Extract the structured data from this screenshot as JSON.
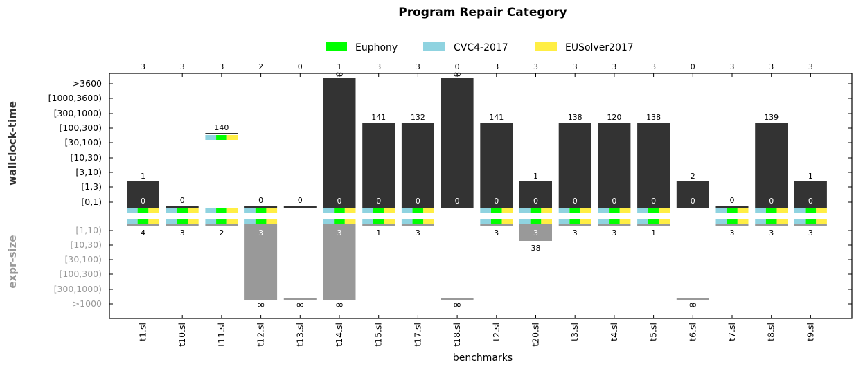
{
  "chart_data": {
    "type": "bar",
    "title": "Program Repair  Category",
    "xlabel": "benchmarks",
    "ylabel_top": "wallclock-time",
    "ylabel_bottom": "expr-size",
    "time_ticks": [
      "[0,1)",
      "[1,3)",
      "[3,10)",
      "[10,30)",
      "[30,100)",
      "[100,300)",
      "[300,1000)",
      "[1000,3600)",
      ">3600"
    ],
    "size_ticks": [
      "[1,10)",
      "[10,30)",
      "[30,100)",
      "[100,300)",
      "[300,1000)",
      ">1000"
    ],
    "legend": [
      {
        "name": "Euphony",
        "color": "#00ff00"
      },
      {
        "name": "CVC4-2017",
        "color": "#8fd3e0"
      },
      {
        "name": "EUSolver2017",
        "color": "#ffee44"
      }
    ],
    "categories": [
      "t1.sl",
      "t10.sl",
      "t11.sl",
      "t12.sl",
      "t13.sl",
      "t14.sl",
      "t15.sl",
      "t17.sl",
      "t18.sl",
      "t2.sl",
      "t20.sl",
      "t3.sl",
      "t4.sl",
      "t5.sl",
      "t6.sl",
      "t7.sl",
      "t8.sl",
      "t9.sl"
    ],
    "solved_counts": [
      "3",
      "3",
      "3",
      "2",
      "0",
      "1",
      "3",
      "3",
      "0",
      "3",
      "3",
      "3",
      "3",
      "3",
      "0",
      "3",
      "3",
      "3"
    ],
    "time_level": [
      1,
      0,
      5,
      0,
      0,
      8,
      5,
      5,
      8,
      5,
      1,
      5,
      5,
      5,
      1,
      0,
      5,
      1
    ],
    "time_top_label": [
      "1",
      "0",
      "140",
      "0",
      "0",
      "∞",
      "141",
      "132",
      "∞",
      "141",
      "1",
      "138",
      "120",
      "138",
      "2",
      "0",
      "139",
      "1"
    ],
    "time_inner_label": [
      "0",
      "",
      "",
      "",
      "",
      "0",
      "0",
      "0",
      "0",
      "0",
      "0",
      "0",
      "0",
      "0",
      "0",
      "",
      "0",
      "0"
    ],
    "size_level": [
      0,
      0,
      0,
      6,
      6,
      6,
      0,
      0,
      6,
      0,
      2,
      0,
      0,
      0,
      6,
      0,
      0,
      0
    ],
    "size_bottom_label": [
      "4",
      "3",
      "2",
      "∞",
      "∞",
      "∞",
      "1",
      "3",
      "∞",
      "3",
      "38",
      "3",
      "3",
      "1",
      "∞",
      "3",
      "3",
      "3"
    ],
    "size_inner_label": [
      "",
      "",
      "",
      "3",
      "",
      "3",
      "",
      "",
      "",
      "",
      "3",
      "",
      "",
      "",
      "",
      "",
      "",
      ""
    ],
    "colors": {
      "time_bar": "#333333",
      "size_bar": "#999999",
      "euphony": "#00ff00",
      "cvc4": "#8fd3e0",
      "eusolver": "#ffee44"
    }
  }
}
